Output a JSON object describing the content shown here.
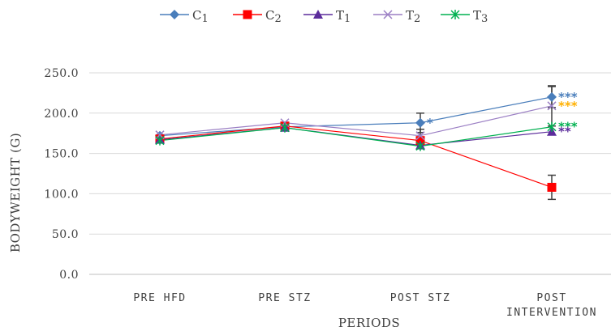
{
  "chart_data": {
    "type": "line",
    "xlabel": "PERIODS",
    "ylabel": "BODYWEIGHT (G)",
    "ylim": [
      0,
      250
    ],
    "yticks": [
      "0.0",
      "50.0",
      "100.0",
      "150.0",
      "200.0",
      "250.0"
    ],
    "grid": true,
    "legend_position": "top",
    "categories": [
      {
        "lines": [
          "PRE HFD"
        ]
      },
      {
        "lines": [
          "PRE STZ"
        ]
      },
      {
        "lines": [
          "POST STZ"
        ]
      },
      {
        "lines": [
          "POST",
          "INTERVENTION"
        ]
      }
    ],
    "series": [
      {
        "name": "C1",
        "name_base": "C",
        "name_digit": "1",
        "color": "#4a7ebb",
        "marker": "diamond",
        "values": [
          172,
          183,
          188,
          220
        ],
        "errors": [
          null,
          null,
          12,
          13
        ]
      },
      {
        "name": "C2",
        "name_base": "C",
        "name_digit": "2",
        "color": "#ff0000",
        "marker": "square",
        "values": [
          168,
          184,
          166,
          108
        ],
        "errors": [
          null,
          null,
          null,
          15
        ]
      },
      {
        "name": "T1",
        "name_base": "T",
        "name_digit": "1",
        "color": "#5b2c9b",
        "marker": "triangle",
        "values": [
          167,
          182,
          160,
          177
        ],
        "errors": [
          null,
          null,
          null,
          null
        ]
      },
      {
        "name": "T2",
        "name_base": "T",
        "name_digit": "2",
        "color": "#9b7fc4",
        "marker": "x",
        "values": [
          173,
          188,
          172,
          209
        ],
        "errors": [
          null,
          null,
          8,
          25
        ]
      },
      {
        "name": "T3",
        "name_base": "T",
        "name_digit": "3",
        "color": "#00b050",
        "marker": "star",
        "values": [
          166,
          182,
          159,
          183
        ],
        "errors": [
          null,
          null,
          null,
          null
        ]
      }
    ],
    "annotations": [
      {
        "text": "*",
        "series": "C1",
        "category": 2,
        "color": "#4a7ebb"
      },
      {
        "text": "***",
        "series": "C1",
        "category": 3,
        "color": "#4a7ebb"
      },
      {
        "text": "***",
        "series": "T2",
        "category": 3,
        "color": "#ffb000"
      },
      {
        "text": "***",
        "series": "T3",
        "category": 3,
        "color": "#00b050"
      },
      {
        "text": "**",
        "series": "T1",
        "category": 3,
        "color": "#5b2c9b"
      }
    ]
  }
}
